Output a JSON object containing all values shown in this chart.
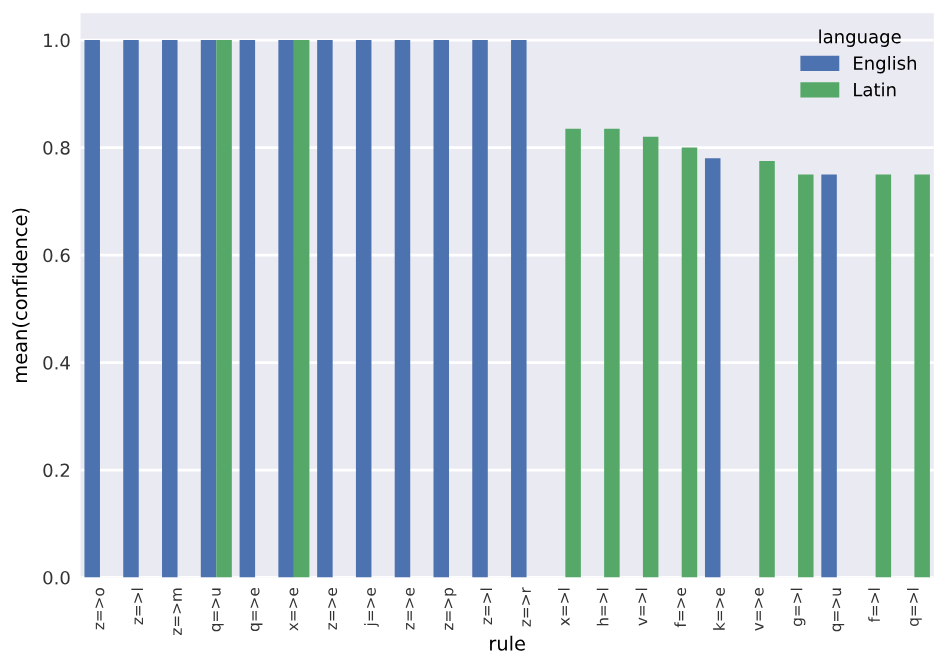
{
  "chart_data": {
    "type": "bar",
    "xlabel": "rule",
    "ylabel": "mean(confidence)",
    "legend_title": "language",
    "categories": [
      "z=>o",
      "z=>l",
      "z=>m",
      "q=>u",
      "q=>e",
      "x=>e",
      "z=>e",
      "j=>e",
      "z=>e",
      "z=>p",
      "z=>l",
      "z=>r",
      "x=>l",
      "h=>l",
      "v=>l",
      "f=>e",
      "k=>e",
      "v=>e",
      "g=>l",
      "q=>u",
      "f=>l",
      "q=>l"
    ],
    "series": [
      {
        "name": "English",
        "color": "#4c72b0",
        "values": [
          1.0,
          1.0,
          1.0,
          1.0,
          1.0,
          1.0,
          1.0,
          1.0,
          1.0,
          1.0,
          1.0,
          1.0,
          null,
          null,
          null,
          null,
          0.78,
          null,
          null,
          0.75,
          null,
          null
        ]
      },
      {
        "name": "Latin",
        "color": "#55a868",
        "values": [
          null,
          null,
          null,
          1.0,
          null,
          1.0,
          null,
          null,
          null,
          null,
          null,
          null,
          0.835,
          0.835,
          0.82,
          0.8,
          null,
          0.775,
          0.75,
          null,
          0.75,
          0.75
        ]
      }
    ],
    "ylim": [
      0,
      1.05
    ],
    "yticks": [
      {
        "value": 0,
        "label": "0.0"
      },
      {
        "value": 0.2,
        "label": "0.2"
      },
      {
        "value": 0.4,
        "label": "0.4"
      },
      {
        "value": 0.6,
        "label": "0.6"
      },
      {
        "value": 0.8,
        "label": "0.8"
      },
      {
        "value": 1.0,
        "label": "1.0"
      }
    ],
    "grid": "y",
    "legend": "top right"
  }
}
